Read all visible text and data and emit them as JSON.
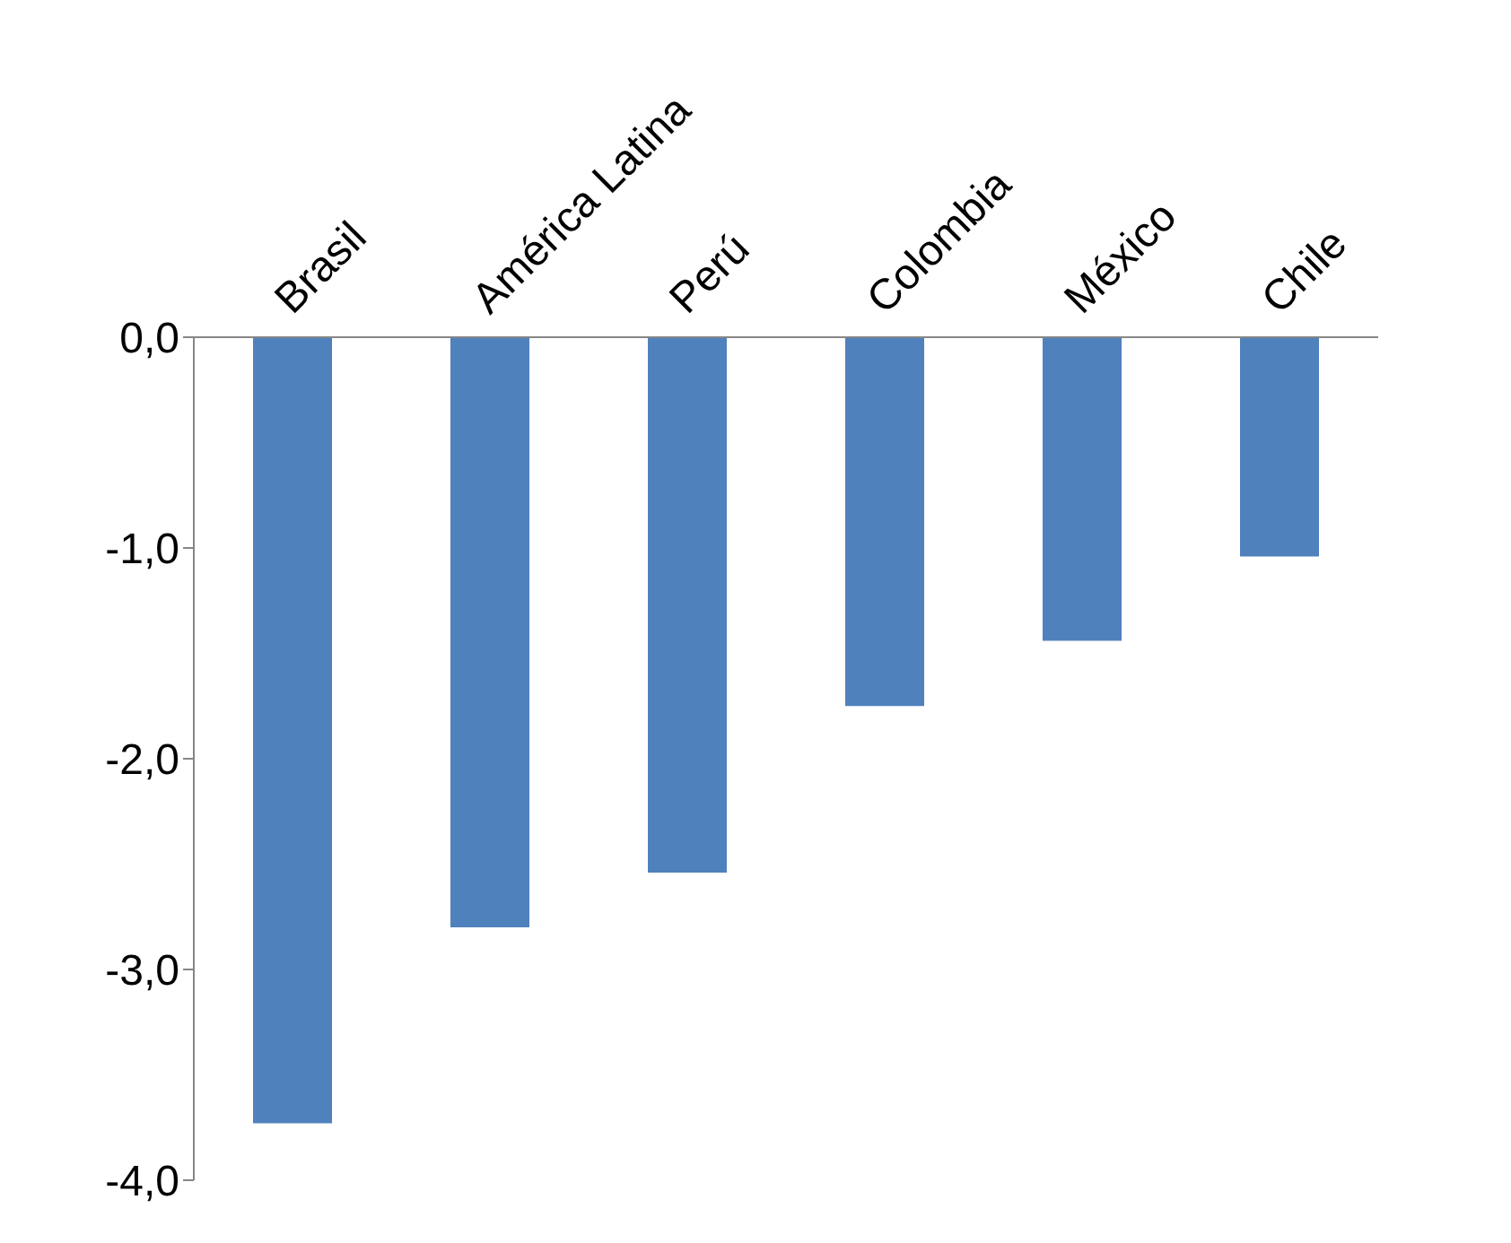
{
  "chart_data": {
    "type": "bar",
    "categories": [
      "Brasil",
      "América Latina",
      "Perú",
      "Colombia",
      "México",
      "Chile"
    ],
    "values": [
      -3.73,
      -2.8,
      -2.54,
      -1.75,
      -1.44,
      -1.04
    ],
    "color": "#4f81bd",
    "ylim": [
      -4,
      0
    ],
    "yticks": [
      {
        "value": 0,
        "label": "0,0"
      },
      {
        "value": -1,
        "label": "-1,0"
      },
      {
        "value": -2,
        "label": "-2,0"
      },
      {
        "value": -3,
        "label": "-3,0"
      },
      {
        "value": -4,
        "label": "-4,0"
      }
    ],
    "grid": false,
    "legend": false
  }
}
